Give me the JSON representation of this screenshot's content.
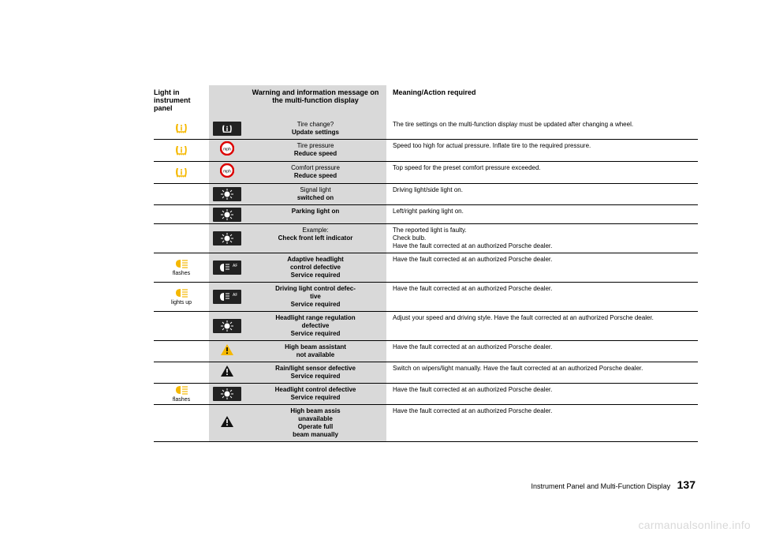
{
  "header": {
    "panel": "Light in instrument panel",
    "msg": "Warning and information message on the multi-function display",
    "meaning": "Meaning/Action required"
  },
  "rows": [
    {
      "panel_icon": "tire-yellow",
      "panel_sub": "",
      "icon": "tire-dark",
      "msg_norm": "Tire change?",
      "msg_bold": "Update settings",
      "meaning": "The tire settings on the multi-function display must be updated after changing a wheel."
    },
    {
      "panel_icon": "tire-yellow",
      "panel_sub": "",
      "icon": "speed-red",
      "msg_norm": "Tire pressure",
      "msg_bold": "Reduce speed",
      "meaning": "Speed too high for actual pressure. Inflate tire to the required pressure."
    },
    {
      "panel_icon": "tire-yellow",
      "panel_sub": "",
      "icon": "speed-red",
      "msg_norm": "Comfort pressure",
      "msg_bold": "Reduce speed",
      "meaning": "Top speed for the preset comfort pressure exceeded."
    },
    {
      "panel_icon": "",
      "panel_sub": "",
      "icon": "bulb-dark",
      "msg_norm": "Signal light",
      "msg_bold": "switched on",
      "meaning": "Driving light/side light on."
    },
    {
      "panel_icon": "",
      "panel_sub": "",
      "icon": "bulb-dark",
      "msg_bold": "Parking light on",
      "msg_norm": "",
      "meaning": "Left/right parking light on."
    },
    {
      "panel_icon": "",
      "panel_sub": "",
      "icon": "bulb-dark",
      "msg_norm": "Example:",
      "msg_bold": "Check front left indicator",
      "meaning": "The reported light is faulty.\nCheck bulb.\nHave the fault corrected at an authorized Porsche dealer."
    },
    {
      "panel_icon": "headlight-yellow",
      "panel_sub": "flashes",
      "icon": "afs-dark",
      "msg_bold": "Adaptive headlight control defective Service required",
      "msg_norm": "",
      "meaning": "Have the fault corrected at an authorized Porsche dealer."
    },
    {
      "panel_icon": "headlight-yellow",
      "panel_sub": "lights up",
      "icon": "afs-dark",
      "msg_bold": "Driving light control defective Service required",
      "msg_norm": "",
      "meaning": "Have the fault corrected at an authorized Porsche dealer."
    },
    {
      "panel_icon": "",
      "panel_sub": "",
      "icon": "bulb-dark",
      "msg_bold": "Headlight range regulation defective Service required",
      "msg_norm": "",
      "meaning": "Adjust your speed and driving style. Have the fault corrected at an authorized Porsche dealer."
    },
    {
      "panel_icon": "",
      "panel_sub": "",
      "icon": "tri-yellow",
      "msg_bold": "High beam assistant not available",
      "msg_norm": "",
      "meaning": "Have the fault corrected at an authorized Porsche dealer."
    },
    {
      "panel_icon": "",
      "panel_sub": "",
      "icon": "tri-black",
      "msg_bold": "Rain/light sensor defective Service required",
      "msg_norm": "",
      "meaning": "Switch on wipers/light manually. Have the fault corrected at an authorized Porsche dealer."
    },
    {
      "panel_icon": "headlight-yellow",
      "panel_sub": "flashes",
      "icon": "bulb-dark",
      "msg_bold": "Headlight control defective Service required",
      "msg_norm": "",
      "meaning": "Have the fault corrected at an authorized Porsche dealer."
    },
    {
      "panel_icon": "",
      "panel_sub": "",
      "icon": "tri-black",
      "msg_bold": "High beam assis unavailable Operate full beam manually",
      "msg_norm": "",
      "meaning": "Have the fault corrected at an authorized Porsche dealer."
    }
  ],
  "footer": {
    "text": "Instrument Panel and Multi-Function Display",
    "page": "137"
  },
  "watermark": "carmanualsonline.info",
  "colors": {
    "grey": "#d9d9d9",
    "yellow": "#f5b800",
    "dark": "#222222"
  }
}
